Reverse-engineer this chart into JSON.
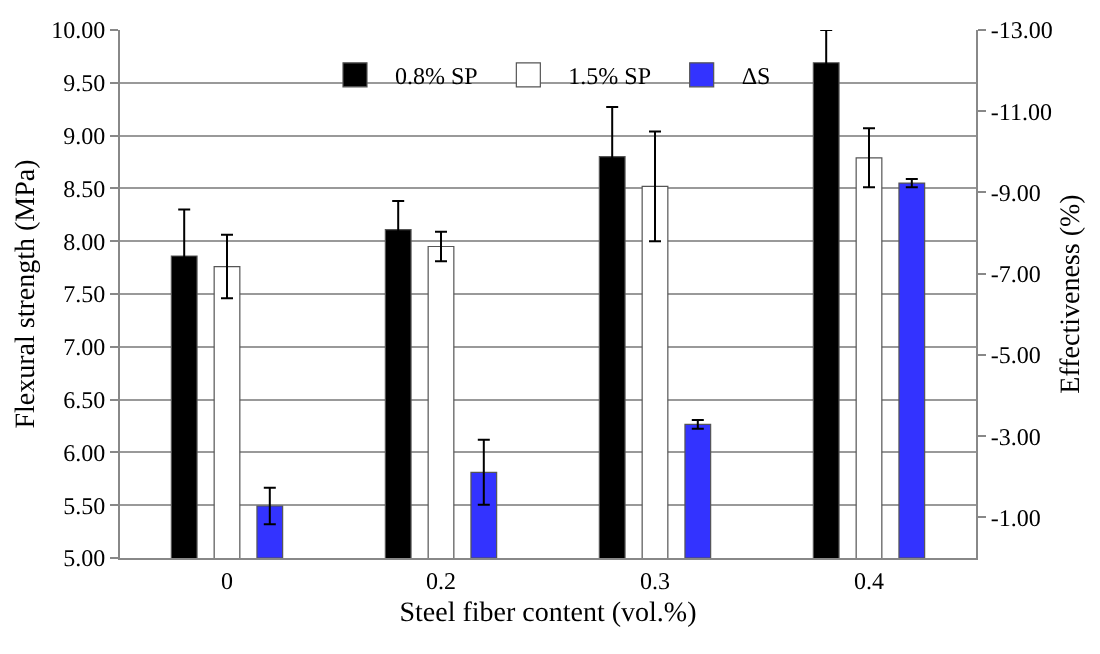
{
  "chart_data": {
    "type": "bar",
    "xlabel": "Steel fiber content (vol.%)",
    "ylabel": "Flexural strength (MPa)",
    "y2label": "Effectiveness (%)",
    "categories": [
      "0",
      "0.2",
      "0.3",
      "0.4"
    ],
    "series": [
      {
        "name": "0.8% SP",
        "color": "#000000",
        "values": [
          7.86,
          8.11,
          8.8,
          9.69
        ],
        "errors": [
          0.44,
          0.27,
          0.47,
          0.31
        ]
      },
      {
        "name": "1.5% SP",
        "color": "#ffffff",
        "values": [
          7.76,
          7.95,
          8.52,
          8.79
        ],
        "errors": [
          0.3,
          0.14,
          0.52,
          0.28
        ]
      },
      {
        "name": "ΔS",
        "color": "#3333ff",
        "axis": "y2",
        "values": [
          -1.28,
          -2.11,
          -3.29,
          -9.23
        ],
        "errors": [
          0.45,
          0.8,
          0.11,
          0.1
        ]
      }
    ],
    "ylim": [
      5,
      10
    ],
    "yticks": [
      {
        "value": 5,
        "label": "5.00"
      },
      {
        "value": 5.5,
        "label": "5.50"
      },
      {
        "value": 6,
        "label": "6.00"
      },
      {
        "value": 6.5,
        "label": "6.50"
      },
      {
        "value": 7,
        "label": "7.00"
      },
      {
        "value": 7.5,
        "label": "7.50"
      },
      {
        "value": 8,
        "label": "8.00"
      },
      {
        "value": 8.5,
        "label": "8.50"
      },
      {
        "value": 9,
        "label": "9.00"
      },
      {
        "value": 9.5,
        "label": "9.50"
      },
      {
        "value": 10,
        "label": "10.00"
      }
    ],
    "y2lim": [
      0,
      -13
    ],
    "y2ticks": [
      {
        "value": -1,
        "label": "-1.00"
      },
      {
        "value": -3,
        "label": "-3.00"
      },
      {
        "value": -5,
        "label": "-5.00"
      },
      {
        "value": -7,
        "label": "-7.00"
      },
      {
        "value": -9,
        "label": "-9.00"
      },
      {
        "value": -11,
        "label": "-11.00"
      },
      {
        "value": -13,
        "label": "-13.00"
      }
    ],
    "grid": "y",
    "legend": "top"
  }
}
